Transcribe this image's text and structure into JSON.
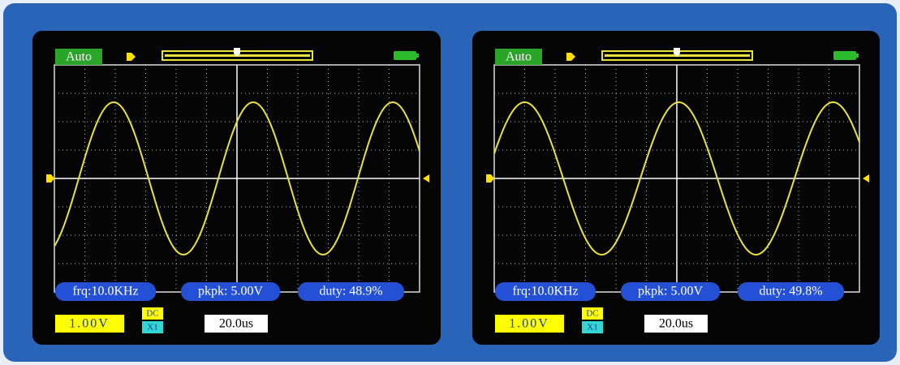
{
  "screens": [
    {
      "mode": "Auto",
      "frequency": "frq:10.0KHz",
      "peak_to_peak": "pkpk: 5.00V",
      "duty": "duty: 48.9%",
      "volts_per_div": "1.00V",
      "coupling": "DC",
      "probe": "X1",
      "time_per_div": "20.0us"
    },
    {
      "mode": "Auto",
      "frequency": "frq:10.0KHz",
      "peak_to_peak": "pkpk: 5.00V",
      "duty": "duty: 49.8%",
      "volts_per_div": "1.00V",
      "coupling": "DC",
      "probe": "X1",
      "time_per_div": "20.0us"
    }
  ]
}
